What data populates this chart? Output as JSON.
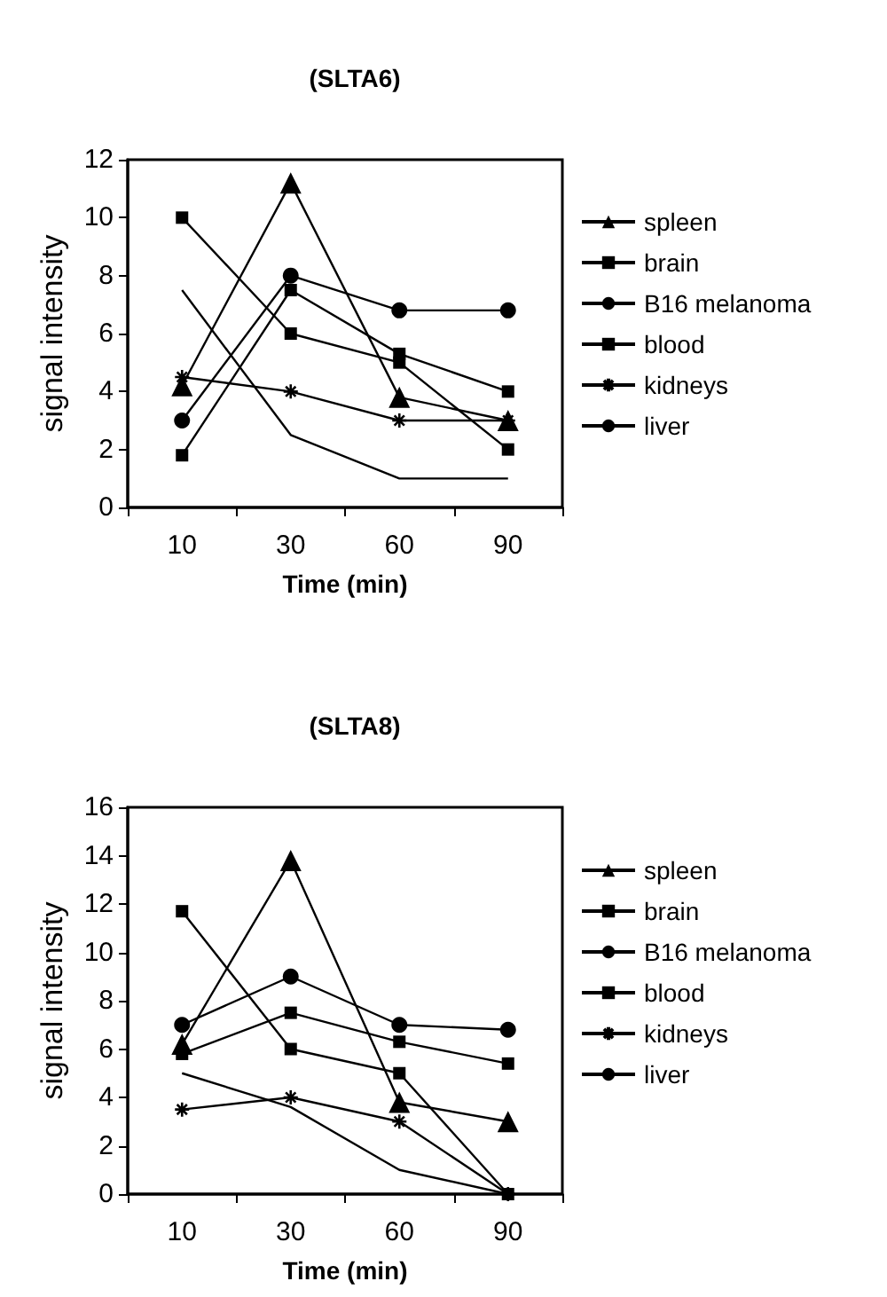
{
  "chart_data": [
    {
      "type": "line",
      "title": "(SLTA6)",
      "xlabel": "Time (min)",
      "ylabel": "signal intensity",
      "categories": [
        "10",
        "30",
        "60",
        "90"
      ],
      "ylim": [
        0,
        12
      ],
      "yticks": [
        0,
        2,
        4,
        6,
        8,
        10,
        12
      ],
      "grid": false,
      "legend": "right",
      "series": [
        {
          "name": "spleen",
          "color": "#000000",
          "marker": "triangle",
          "values": [
            4.2,
            11.2,
            3.8,
            3
          ]
        },
        {
          "name": "brain",
          "color": "#000000",
          "marker": "square",
          "values": [
            1.8,
            7.5,
            5.3,
            4
          ]
        },
        {
          "name": "B16 melanoma",
          "color": "#000000",
          "marker": "circle",
          "values": [
            3,
            8,
            6.8,
            6.8
          ]
        },
        {
          "name": "blood",
          "color": "#000000",
          "marker": "square",
          "values": [
            10,
            6,
            5,
            2
          ]
        },
        {
          "name": "kidneys",
          "color": "#000000",
          "marker": "cross",
          "values": [
            4.5,
            4,
            3,
            3
          ]
        },
        {
          "name": "liver",
          "color": "#000000",
          "marker": "none",
          "values": [
            7.5,
            2.5,
            1,
            1
          ]
        }
      ]
    },
    {
      "type": "line",
      "title": "(SLTA8)",
      "xlabel": "Time (min)",
      "ylabel": "signal intensity",
      "categories": [
        "10",
        "30",
        "60",
        "90"
      ],
      "ylim": [
        0,
        16
      ],
      "yticks": [
        0,
        2,
        4,
        6,
        8,
        10,
        12,
        14,
        16
      ],
      "grid": false,
      "legend": "right",
      "series": [
        {
          "name": "spleen",
          "color": "#000000",
          "marker": "triangle",
          "values": [
            6.2,
            13.8,
            3.8,
            3
          ]
        },
        {
          "name": "brain",
          "color": "#000000",
          "marker": "square",
          "values": [
            5.8,
            7.5,
            6.3,
            5.4
          ]
        },
        {
          "name": "B16 melanoma",
          "color": "#000000",
          "marker": "circle",
          "values": [
            7,
            9,
            7,
            6.8
          ]
        },
        {
          "name": "blood",
          "color": "#000000",
          "marker": "square",
          "values": [
            11.7,
            6,
            5,
            0
          ]
        },
        {
          "name": "kidneys",
          "color": "#000000",
          "marker": "cross",
          "values": [
            3.5,
            4,
            3,
            0
          ]
        },
        {
          "name": "liver",
          "color": "#000000",
          "marker": "none",
          "values": [
            5,
            3.6,
            1,
            0
          ]
        }
      ]
    }
  ]
}
